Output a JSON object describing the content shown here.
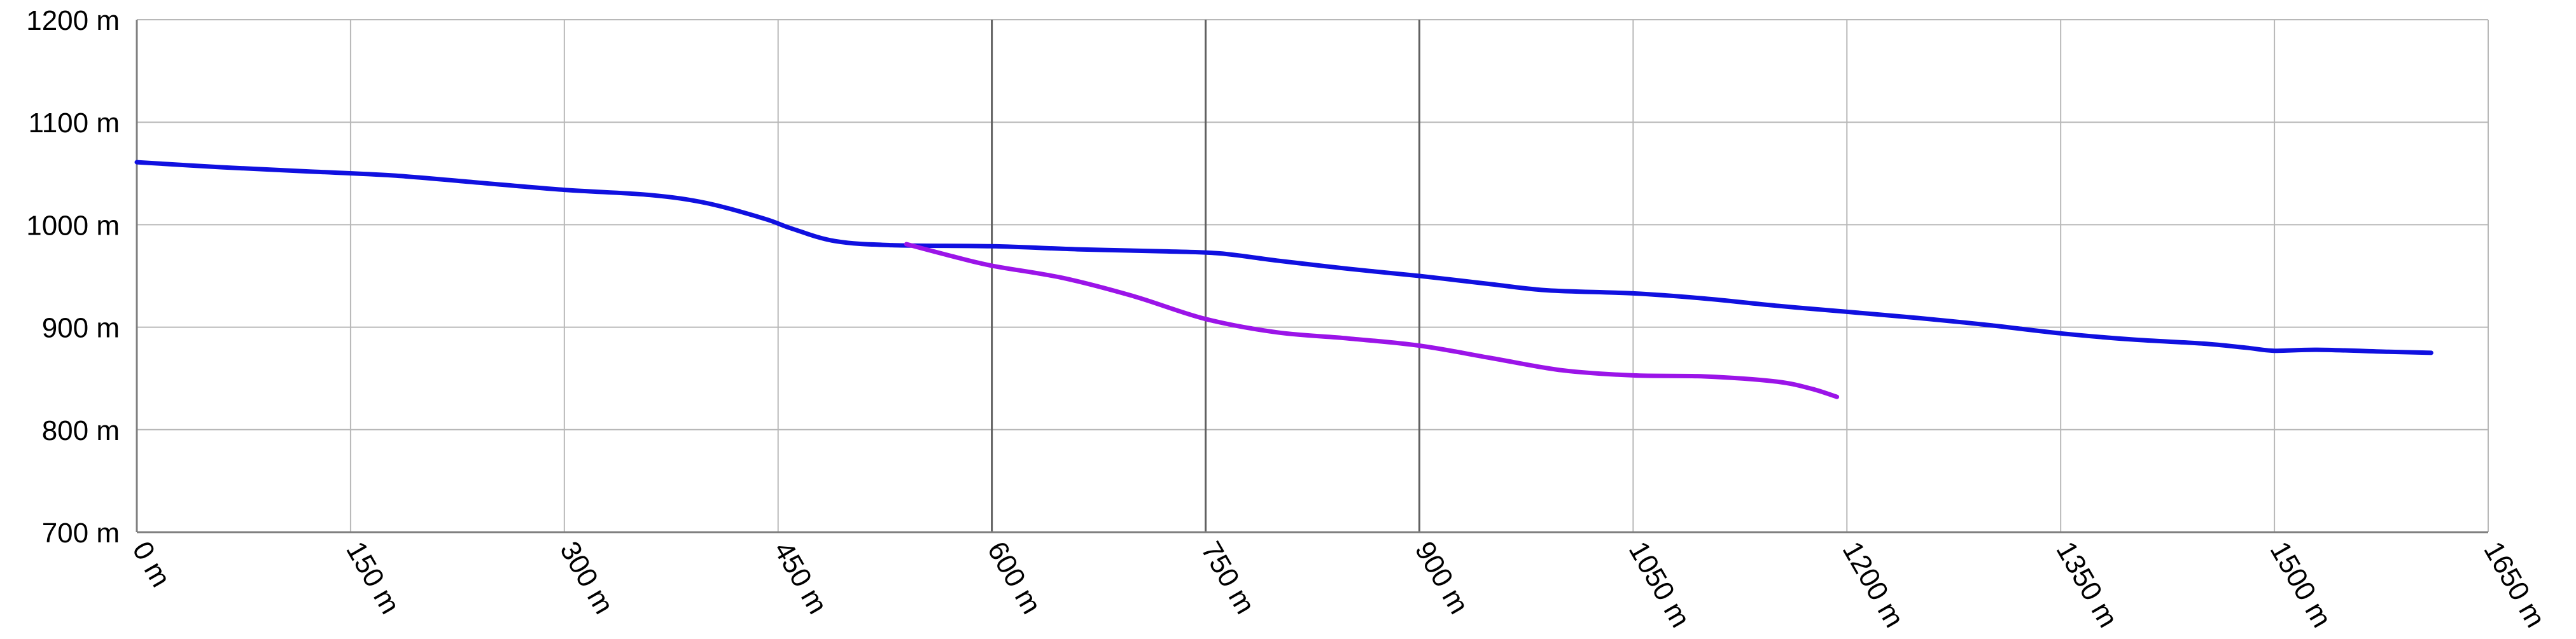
{
  "chart_data": {
    "type": "line",
    "title": "",
    "xlabel": "",
    "ylabel": "",
    "xlim": [
      0,
      1650
    ],
    "ylim": [
      700,
      1200
    ],
    "x_ticks": [
      0,
      150,
      300,
      450,
      600,
      750,
      900,
      1050,
      1200,
      1350,
      1500,
      1650
    ],
    "x_tick_labels": [
      "0 m",
      "150 m",
      "300 m",
      "450 m",
      "600 m",
      "750 m",
      "900 m",
      "1050 m",
      "1200 m",
      "1350 m",
      "1500 m",
      "1650 m"
    ],
    "y_ticks": [
      700,
      800,
      900,
      1000,
      1100,
      1200
    ],
    "y_tick_labels": [
      "700 m",
      "800 m",
      "900 m",
      "1000 m",
      "1100 m",
      "1200 m"
    ],
    "grid": true,
    "legend": "none",
    "series": [
      {
        "color": "#1010e0",
        "points": [
          [
            0,
            1061
          ],
          [
            60,
            1056
          ],
          [
            120,
            1052
          ],
          [
            180,
            1048
          ],
          [
            240,
            1041
          ],
          [
            300,
            1034
          ],
          [
            360,
            1029
          ],
          [
            400,
            1021
          ],
          [
            440,
            1006
          ],
          [
            460,
            996
          ],
          [
            490,
            984
          ],
          [
            530,
            980
          ],
          [
            600,
            979
          ],
          [
            660,
            976
          ],
          [
            720,
            974
          ],
          [
            760,
            972
          ],
          [
            800,
            965
          ],
          [
            850,
            957
          ],
          [
            900,
            950
          ],
          [
            950,
            942
          ],
          [
            990,
            936
          ],
          [
            1050,
            933
          ],
          [
            1100,
            928
          ],
          [
            1150,
            921
          ],
          [
            1200,
            915
          ],
          [
            1250,
            909
          ],
          [
            1300,
            902
          ],
          [
            1350,
            894
          ],
          [
            1400,
            888
          ],
          [
            1450,
            884
          ],
          [
            1480,
            880
          ],
          [
            1500,
            877
          ],
          [
            1530,
            878
          ],
          [
            1580,
            876
          ],
          [
            1610,
            875
          ]
        ]
      },
      {
        "color": "#9b14e8",
        "points": [
          [
            540,
            981
          ],
          [
            570,
            970
          ],
          [
            600,
            960
          ],
          [
            650,
            948
          ],
          [
            700,
            930
          ],
          [
            750,
            908
          ],
          [
            800,
            895
          ],
          [
            850,
            889
          ],
          [
            900,
            882
          ],
          [
            950,
            870
          ],
          [
            1000,
            858
          ],
          [
            1050,
            853
          ],
          [
            1100,
            852
          ],
          [
            1150,
            847
          ],
          [
            1175,
            840
          ],
          [
            1193,
            832
          ]
        ]
      }
    ]
  }
}
